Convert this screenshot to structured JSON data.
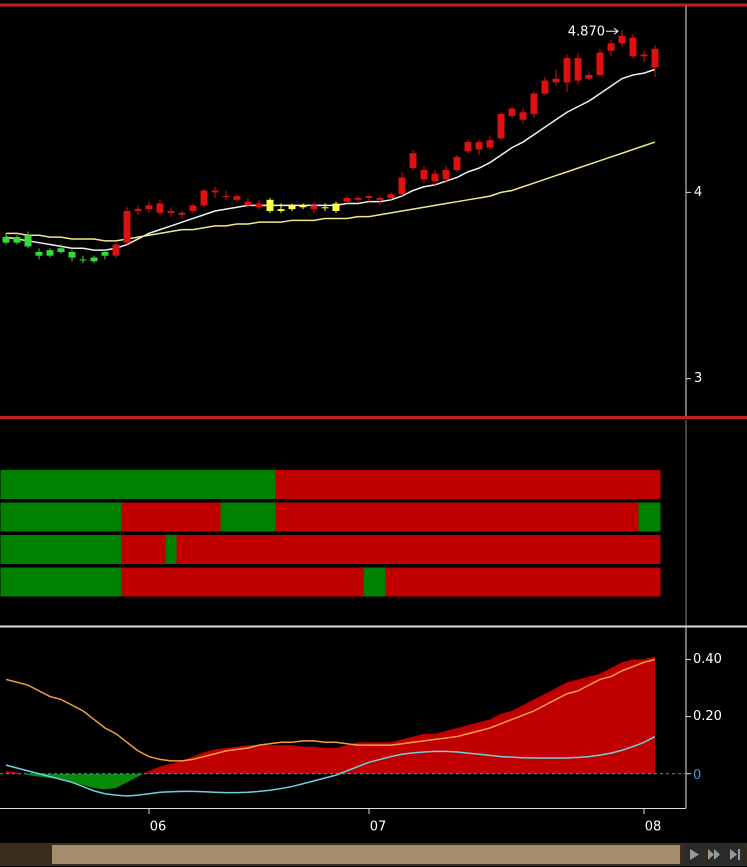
{
  "chart_data": [
    {
      "type": "candlestick",
      "annotation": "4.870",
      "ylim": [
        2.8,
        5.0
      ],
      "yticks": [
        3,
        4
      ],
      "ohlc": [
        [
          3.76,
          3.78,
          3.72,
          3.73
        ],
        [
          3.73,
          3.77,
          3.72,
          3.76
        ],
        [
          3.77,
          3.79,
          3.7,
          3.71
        ],
        [
          3.68,
          3.7,
          3.64,
          3.66
        ],
        [
          3.66,
          3.7,
          3.65,
          3.69
        ],
        [
          3.7,
          3.72,
          3.67,
          3.68
        ],
        [
          3.68,
          3.69,
          3.63,
          3.65
        ],
        [
          3.64,
          3.66,
          3.62,
          3.64
        ],
        [
          3.63,
          3.66,
          3.62,
          3.65
        ],
        [
          3.66,
          3.69,
          3.64,
          3.68
        ],
        [
          3.66,
          3.73,
          3.65,
          3.72
        ],
        [
          3.73,
          3.92,
          3.72,
          3.9
        ],
        [
          3.9,
          3.93,
          3.88,
          3.91
        ],
        [
          3.91,
          3.95,
          3.89,
          3.93
        ],
        [
          3.94,
          3.96,
          3.88,
          3.89
        ],
        [
          3.89,
          3.92,
          3.87,
          3.9
        ],
        [
          3.88,
          3.9,
          3.86,
          3.89
        ],
        [
          3.9,
          3.94,
          3.89,
          3.93
        ],
        [
          3.93,
          4.02,
          3.92,
          4.01
        ],
        [
          4.0,
          4.03,
          3.97,
          4.01
        ],
        [
          3.98,
          4.01,
          3.96,
          3.98
        ],
        [
          3.98,
          3.99,
          3.95,
          3.96
        ],
        [
          3.95,
          3.97,
          3.92,
          3.93
        ],
        [
          3.94,
          3.96,
          3.91,
          3.92
        ],
        [
          3.9,
          3.97,
          3.89,
          3.96
        ],
        [
          3.91,
          3.94,
          3.89,
          3.9
        ],
        [
          3.91,
          3.94,
          3.9,
          3.93
        ],
        [
          3.92,
          3.94,
          3.91,
          3.93
        ],
        [
          3.93,
          3.95,
          3.89,
          3.91
        ],
        [
          3.92,
          3.94,
          3.9,
          3.92
        ],
        [
          3.9,
          3.95,
          3.89,
          3.94
        ],
        [
          3.95,
          3.98,
          3.94,
          3.97
        ],
        [
          3.96,
          3.98,
          3.95,
          3.97
        ],
        [
          3.97,
          3.99,
          3.95,
          3.98
        ],
        [
          3.96,
          3.98,
          3.93,
          3.97
        ],
        [
          3.97,
          4.0,
          3.96,
          3.99
        ],
        [
          3.99,
          4.11,
          3.98,
          4.08
        ],
        [
          4.13,
          4.23,
          4.12,
          4.21
        ],
        [
          4.12,
          4.14,
          4.05,
          4.07
        ],
        [
          4.1,
          4.12,
          4.03,
          4.06
        ],
        [
          4.07,
          4.14,
          4.05,
          4.12
        ],
        [
          4.12,
          4.2,
          4.11,
          4.19
        ],
        [
          4.22,
          4.28,
          4.21,
          4.27
        ],
        [
          4.23,
          4.28,
          4.2,
          4.27
        ],
        [
          4.24,
          4.3,
          4.23,
          4.28
        ],
        [
          4.29,
          4.43,
          4.28,
          4.42
        ],
        [
          4.41,
          4.46,
          4.4,
          4.45
        ],
        [
          4.43,
          4.45,
          4.37,
          4.39
        ],
        [
          4.42,
          4.54,
          4.4,
          4.53
        ],
        [
          4.53,
          4.62,
          4.52,
          4.6
        ],
        [
          4.61,
          4.66,
          4.57,
          4.59
        ],
        [
          4.59,
          4.74,
          4.54,
          4.72
        ],
        [
          4.72,
          4.75,
          4.58,
          4.6
        ],
        [
          4.61,
          4.65,
          4.6,
          4.63
        ],
        [
          4.63,
          4.77,
          4.62,
          4.75
        ],
        [
          4.76,
          4.82,
          4.73,
          4.8
        ],
        [
          4.8,
          4.87,
          4.78,
          4.84
        ],
        [
          4.83,
          4.85,
          4.72,
          4.73
        ],
        [
          4.73,
          4.76,
          4.7,
          4.74
        ],
        [
          4.77,
          4.79,
          4.62,
          4.67
        ]
      ],
      "candle_colors": [
        "#33dd33",
        "#33dd33",
        "#33dd33",
        "#33dd33",
        "#33dd33",
        "#33dd33",
        "#33dd33",
        "#33dd33",
        "#33dd33",
        "#33dd33",
        "#dd1111",
        "#dd1111",
        "#dd1111",
        "#dd1111",
        "#dd1111",
        "#dd1111",
        "#dd1111",
        "#dd1111",
        "#dd1111",
        "#dd1111",
        "#dd1111",
        "#dd1111",
        "#dd1111",
        "#dd1111",
        "#ffff44",
        "#ffff44",
        "#ffff44",
        "#ffff44",
        "#dd1111",
        "#ffff44",
        "#ffff44",
        "#dd1111",
        "#dd1111",
        "#dd1111",
        "#dd1111",
        "#dd1111",
        "#dd1111",
        "#dd1111",
        "#dd1111",
        "#dd1111",
        "#dd1111",
        "#dd1111",
        "#dd1111",
        "#dd1111",
        "#dd1111",
        "#dd1111",
        "#dd1111",
        "#dd1111",
        "#dd1111",
        "#dd1111",
        "#dd1111",
        "#dd1111",
        "#dd1111",
        "#dd1111",
        "#dd1111",
        "#dd1111",
        "#dd1111",
        "#dd1111",
        "#dd1111",
        "#dd1111"
      ],
      "lines": [
        {
          "color": "#f0f0f0",
          "values": [
            3.76,
            3.75,
            3.74,
            3.73,
            3.72,
            3.71,
            3.7,
            3.7,
            3.69,
            3.69,
            3.7,
            3.72,
            3.75,
            3.78,
            3.8,
            3.82,
            3.84,
            3.86,
            3.88,
            3.9,
            3.91,
            3.92,
            3.93,
            3.93,
            3.93,
            3.93,
            3.93,
            3.93,
            3.93,
            3.93,
            3.93,
            3.94,
            3.94,
            3.95,
            3.95,
            3.96,
            3.98,
            4.01,
            4.03,
            4.04,
            4.06,
            4.08,
            4.11,
            4.13,
            4.16,
            4.2,
            4.24,
            4.27,
            4.31,
            4.35,
            4.39,
            4.43,
            4.46,
            4.49,
            4.53,
            4.57,
            4.61,
            4.63,
            4.64,
            4.66
          ]
        },
        {
          "color": "#f2e68c",
          "values": [
            3.78,
            3.78,
            3.77,
            3.77,
            3.76,
            3.76,
            3.75,
            3.75,
            3.75,
            3.74,
            3.74,
            3.75,
            3.76,
            3.77,
            3.78,
            3.79,
            3.8,
            3.8,
            3.81,
            3.82,
            3.82,
            3.83,
            3.83,
            3.84,
            3.84,
            3.84,
            3.85,
            3.85,
            3.85,
            3.86,
            3.86,
            3.86,
            3.87,
            3.87,
            3.88,
            3.89,
            3.9,
            3.91,
            3.92,
            3.93,
            3.94,
            3.95,
            3.96,
            3.97,
            3.98,
            4.0,
            4.01,
            4.03,
            4.05,
            4.07,
            4.09,
            4.11,
            4.13,
            4.15,
            4.17,
            4.19,
            4.21,
            4.23,
            4.25,
            4.27
          ]
        }
      ]
    },
    {
      "type": "state-bars",
      "rows": [
        [
          {
            "from": 0,
            "to": 24,
            "color": "#008000"
          },
          {
            "from": 25,
            "to": 59,
            "color": "#c00000"
          }
        ],
        [
          {
            "from": 0,
            "to": 10,
            "color": "#008000"
          },
          {
            "from": 11,
            "to": 19,
            "color": "#c00000"
          },
          {
            "from": 20,
            "to": 24,
            "color": "#008000"
          },
          {
            "from": 25,
            "to": 57,
            "color": "#c00000"
          },
          {
            "from": 58,
            "to": 59,
            "color": "#008000"
          }
        ],
        [
          {
            "from": 0,
            "to": 10,
            "color": "#008000"
          },
          {
            "from": 11,
            "to": 14,
            "color": "#c00000"
          },
          {
            "from": 15,
            "to": 15,
            "color": "#008000"
          },
          {
            "from": 16,
            "to": 59,
            "color": "#c00000"
          }
        ],
        [
          {
            "from": 0,
            "to": 10,
            "color": "#008000"
          },
          {
            "from": 11,
            "to": 32,
            "color": "#c00000"
          },
          {
            "from": 33,
            "to": 34,
            "color": "#008000"
          },
          {
            "from": 35,
            "to": 59,
            "color": "#c00000"
          }
        ]
      ]
    },
    {
      "type": "oscillator",
      "categories": [
        null,
        null,
        null,
        null,
        null,
        null,
        null,
        null,
        null,
        null,
        null,
        null,
        null,
        "06",
        null,
        null,
        null,
        null,
        null,
        null,
        null,
        null,
        null,
        null,
        null,
        null,
        null,
        null,
        null,
        null,
        null,
        null,
        null,
        "07",
        null,
        null,
        null,
        null,
        null,
        null,
        null,
        null,
        null,
        null,
        null,
        null,
        null,
        null,
        null,
        null,
        null,
        null,
        null,
        null,
        null,
        null,
        null,
        null,
        "08",
        null
      ],
      "ylim": [
        -0.12,
        0.51
      ],
      "yticks": [
        {
          "value": 0.4,
          "label": "0.40"
        },
        {
          "value": 0.2,
          "label": "0.20"
        },
        0
      ],
      "area": {
        "pos_color": "#c00000",
        "neg_color": "#0a8a0a",
        "values": [
          0.01,
          0.005,
          -0.005,
          -0.01,
          -0.015,
          -0.02,
          -0.03,
          -0.04,
          -0.05,
          -0.055,
          -0.05,
          -0.03,
          -0.01,
          0.01,
          0.025,
          0.035,
          0.045,
          0.06,
          0.075,
          0.085,
          0.09,
          0.095,
          0.1,
          0.1,
          0.1,
          0.1,
          0.1,
          0.095,
          0.095,
          0.09,
          0.09,
          0.1,
          0.11,
          0.11,
          0.11,
          0.11,
          0.12,
          0.13,
          0.14,
          0.14,
          0.15,
          0.16,
          0.17,
          0.18,
          0.19,
          0.21,
          0.22,
          0.24,
          0.26,
          0.28,
          0.3,
          0.32,
          0.33,
          0.34,
          0.35,
          0.37,
          0.39,
          0.4,
          0.4,
          0.41
        ]
      },
      "series": [
        {
          "color": "#f0a040",
          "values": [
            0.33,
            0.32,
            0.31,
            0.29,
            0.27,
            0.26,
            0.24,
            0.22,
            0.19,
            0.16,
            0.14,
            0.11,
            0.08,
            0.06,
            0.05,
            0.045,
            0.045,
            0.05,
            0.06,
            0.07,
            0.08,
            0.085,
            0.09,
            0.1,
            0.105,
            0.11,
            0.11,
            0.115,
            0.115,
            0.11,
            0.11,
            0.105,
            0.1,
            0.1,
            0.1,
            0.1,
            0.105,
            0.11,
            0.115,
            0.12,
            0.125,
            0.13,
            0.14,
            0.15,
            0.16,
            0.175,
            0.19,
            0.205,
            0.22,
            0.24,
            0.26,
            0.28,
            0.29,
            0.31,
            0.33,
            0.34,
            0.36,
            0.375,
            0.39,
            0.4
          ]
        },
        {
          "color": "#6fd0e0",
          "values": [
            0.03,
            0.02,
            0.01,
            0.0,
            -0.01,
            -0.02,
            -0.03,
            -0.045,
            -0.06,
            -0.07,
            -0.075,
            -0.078,
            -0.075,
            -0.07,
            -0.065,
            -0.063,
            -0.062,
            -0.062,
            -0.063,
            -0.065,
            -0.066,
            -0.066,
            -0.065,
            -0.062,
            -0.058,
            -0.052,
            -0.045,
            -0.035,
            -0.025,
            -0.015,
            -0.005,
            0.01,
            0.025,
            0.04,
            0.05,
            0.06,
            0.068,
            0.073,
            0.076,
            0.078,
            0.078,
            0.076,
            0.072,
            0.068,
            0.064,
            0.06,
            0.058,
            0.056,
            0.055,
            0.055,
            0.055,
            0.055,
            0.057,
            0.06,
            0.065,
            0.072,
            0.082,
            0.095,
            0.11,
            0.13
          ]
        }
      ],
      "zero_color": "#3a9ae0"
    }
  ]
}
